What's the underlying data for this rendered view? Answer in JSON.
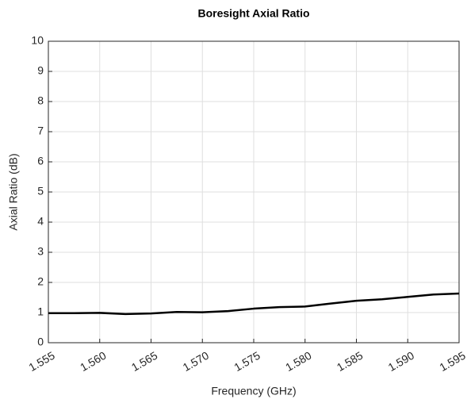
{
  "chart_data": {
    "type": "line",
    "title": "Boresight Axial Ratio",
    "x_label": "Frequency (GHz)",
    "y_label": "Axial Ratio (dB)",
    "x": [
      1.555,
      1.5575,
      1.56,
      1.5625,
      1.565,
      1.5675,
      1.57,
      1.5725,
      1.575,
      1.5775,
      1.58,
      1.5825,
      1.585,
      1.5875,
      1.59,
      1.5925,
      1.595
    ],
    "series": [
      {
        "name": "Axial Ratio",
        "color": "#000000",
        "values": [
          0.98,
          0.98,
          0.99,
          0.95,
          0.97,
          1.02,
          1.01,
          1.05,
          1.13,
          1.18,
          1.2,
          1.3,
          1.39,
          1.44,
          1.52,
          1.6,
          1.63
        ]
      }
    ],
    "xlim": [
      1.555,
      1.595
    ],
    "xticks": [
      1.555,
      {
        "value": 1.56,
        "label": "1.560"
      },
      1.565,
      {
        "value": 1.57,
        "label": "1.570"
      },
      1.575,
      {
        "value": 1.58,
        "label": "1.580"
      },
      1.585,
      {
        "value": 1.59,
        "label": "1.590"
      },
      1.595
    ],
    "ylim": [
      0,
      10
    ],
    "yticks": [
      0,
      1,
      2,
      3,
      4,
      5,
      6,
      7,
      8,
      9,
      10
    ],
    "grid": true
  }
}
